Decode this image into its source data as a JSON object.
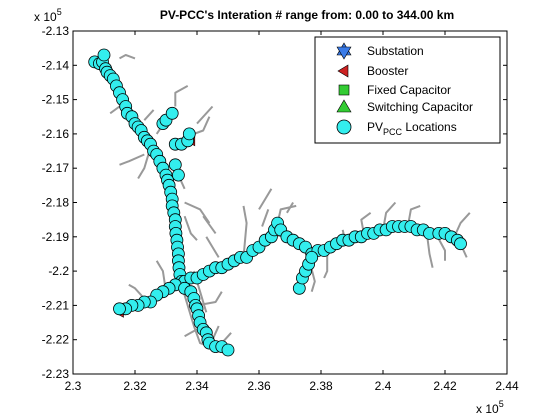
{
  "chart_data": {
    "type": "scatter",
    "title": "PV-PCC's Interation # range from: 0.00 to 344.00 km",
    "xlabel": "",
    "ylabel": "",
    "x_exponent_label": "x 10",
    "x_exponent_power": "5",
    "y_exponent_label": "x 10",
    "y_exponent_power": "5",
    "xlim": [
      2.3,
      2.44
    ],
    "ylim": [
      -2.23,
      -2.13
    ],
    "x_ticks": [
      2.3,
      2.32,
      2.34,
      2.36,
      2.38,
      2.4,
      2.42,
      2.44
    ],
    "x_tick_labels": [
      "2.3",
      "2.32",
      "2.34",
      "2.36",
      "2.38",
      "2.4",
      "2.42",
      "2.44"
    ],
    "y_ticks": [
      -2.13,
      -2.14,
      -2.15,
      -2.16,
      -2.17,
      -2.18,
      -2.19,
      -2.2,
      -2.21,
      -2.22,
      -2.23
    ],
    "y_tick_labels": [
      "-2.13",
      "-2.14",
      "-2.15",
      "-2.16",
      "-2.17",
      "-2.18",
      "-2.19",
      "-2.2",
      "-2.21",
      "-2.22",
      "-2.23"
    ],
    "grid": false,
    "legend_position": "top-right",
    "legend": [
      {
        "label": "Substation",
        "sub": "",
        "suffix": "",
        "marker": "hexagram",
        "color": "#3a7be8"
      },
      {
        "label": "Booster",
        "sub": "",
        "suffix": "",
        "marker": "triangle-left",
        "color": "#cc2222"
      },
      {
        "label": "Fixed Capacitor",
        "sub": "",
        "suffix": "",
        "marker": "square",
        "color": "#33cc33"
      },
      {
        "label": "Switching Capacitor",
        "sub": "",
        "suffix": "",
        "marker": "triangle-up",
        "color": "#33cc33"
      },
      {
        "label": "PV",
        "sub": "PCC",
        "suffix": " Locations",
        "marker": "circle",
        "color": "#33eeee"
      }
    ],
    "network_color": "#999999",
    "marker_edge_color": "#000000",
    "feeder_branches": [
      [
        [
          2.307,
          -2.139
        ],
        [
          2.31,
          -2.142
        ],
        [
          2.314,
          -2.147
        ],
        [
          2.317,
          -2.154
        ],
        [
          2.32,
          -2.157
        ],
        [
          2.323,
          -2.161
        ],
        [
          2.326,
          -2.165
        ],
        [
          2.329,
          -2.17
        ],
        [
          2.331,
          -2.175
        ],
        [
          2.332,
          -2.181
        ],
        [
          2.333,
          -2.186
        ],
        [
          2.3335,
          -2.192
        ],
        [
          2.334,
          -2.198
        ],
        [
          2.335,
          -2.204
        ],
        [
          2.337,
          -2.21
        ],
        [
          2.339,
          -2.216
        ],
        [
          2.341,
          -2.221
        ],
        [
          2.344,
          -2.222
        ],
        [
          2.349,
          -2.223
        ]
      ],
      [
        [
          2.333,
          -2.163
        ],
        [
          2.337,
          -2.162
        ],
        [
          2.338,
          -2.159
        ]
      ],
      [
        [
          2.327,
          -2.16
        ],
        [
          2.33,
          -2.156
        ],
        [
          2.332,
          -2.154
        ]
      ],
      [
        [
          2.332,
          -2.168
        ],
        [
          2.334,
          -2.172
        ],
        [
          2.336,
          -2.176
        ]
      ],
      [
        [
          2.337,
          -2.203
        ],
        [
          2.343,
          -2.201
        ],
        [
          2.348,
          -2.199
        ],
        [
          2.355,
          -2.196
        ],
        [
          2.36,
          -2.193
        ],
        [
          2.364,
          -2.19
        ],
        [
          2.366,
          -2.186
        ]
      ],
      [
        [
          2.363,
          -2.189
        ],
        [
          2.368,
          -2.19
        ],
        [
          2.374,
          -2.192
        ],
        [
          2.379,
          -2.194
        ],
        [
          2.385,
          -2.192
        ],
        [
          2.392,
          -2.19
        ],
        [
          2.398,
          -2.188
        ],
        [
          2.405,
          -2.187
        ],
        [
          2.413,
          -2.188
        ],
        [
          2.417,
          -2.189
        ],
        [
          2.423,
          -2.19
        ],
        [
          2.425,
          -2.192
        ]
      ],
      [
        [
          2.373,
          -2.205
        ],
        [
          2.376,
          -2.198
        ],
        [
          2.378,
          -2.195
        ]
      ],
      [
        [
          2.337,
          -2.203
        ],
        [
          2.33,
          -2.206
        ],
        [
          2.322,
          -2.21
        ],
        [
          2.314,
          -2.212
        ]
      ],
      [
        [
          2.339,
          -2.2
        ],
        [
          2.341,
          -2.206
        ],
        [
          2.343,
          -2.212
        ]
      ]
    ],
    "lateral_lines": [
      [
        [
          2.315,
          -2.138
        ],
        [
          2.317,
          -2.137
        ],
        [
          2.32,
          -2.138
        ]
      ],
      [
        [
          2.318,
          -2.153
        ],
        [
          2.315,
          -2.152
        ],
        [
          2.312,
          -2.154
        ]
      ],
      [
        [
          2.323,
          -2.156
        ],
        [
          2.326,
          -2.153
        ]
      ],
      [
        [
          2.323,
          -2.166
        ],
        [
          2.318,
          -2.168
        ],
        [
          2.315,
          -2.169
        ]
      ],
      [
        [
          2.325,
          -2.164
        ],
        [
          2.323,
          -2.17
        ],
        [
          2.321,
          -2.173
        ]
      ],
      [
        [
          2.336,
          -2.161
        ],
        [
          2.342,
          -2.159
        ],
        [
          2.344,
          -2.155
        ]
      ],
      [
        [
          2.34,
          -2.157
        ],
        [
          2.345,
          -2.152
        ]
      ],
      [
        [
          2.333,
          -2.152
        ],
        [
          2.333,
          -2.148
        ],
        [
          2.337,
          -2.146
        ]
      ],
      [
        [
          2.336,
          -2.18
        ],
        [
          2.341,
          -2.182
        ],
        [
          2.344,
          -2.186
        ]
      ],
      [
        [
          2.336,
          -2.184
        ],
        [
          2.338,
          -2.189
        ],
        [
          2.34,
          -2.191
        ]
      ],
      [
        [
          2.342,
          -2.184
        ],
        [
          2.346,
          -2.189
        ]
      ],
      [
        [
          2.347,
          -2.196
        ],
        [
          2.345,
          -2.193
        ],
        [
          2.343,
          -2.19
        ]
      ],
      [
        [
          2.355,
          -2.196
        ],
        [
          2.356,
          -2.186
        ],
        [
          2.355,
          -2.181
        ]
      ],
      [
        [
          2.36,
          -2.182
        ],
        [
          2.362,
          -2.179
        ],
        [
          2.364,
          -2.176
        ]
      ],
      [
        [
          2.361,
          -2.187
        ],
        [
          2.363,
          -2.182
        ]
      ],
      [
        [
          2.366,
          -2.186
        ],
        [
          2.367,
          -2.182
        ],
        [
          2.372,
          -2.181
        ]
      ],
      [
        [
          2.369,
          -2.183
        ],
        [
          2.371,
          -2.18
        ]
      ],
      [
        [
          2.376,
          -2.196
        ],
        [
          2.378,
          -2.203
        ],
        [
          2.377,
          -2.206
        ]
      ],
      [
        [
          2.382,
          -2.194
        ],
        [
          2.382,
          -2.2
        ],
        [
          2.381,
          -2.202
        ]
      ],
      [
        [
          2.388,
          -2.192
        ],
        [
          2.387,
          -2.188
        ]
      ],
      [
        [
          2.394,
          -2.19
        ],
        [
          2.393,
          -2.185
        ],
        [
          2.396,
          -2.183
        ]
      ],
      [
        [
          2.4,
          -2.188
        ],
        [
          2.401,
          -2.183
        ],
        [
          2.404,
          -2.18
        ]
      ],
      [
        [
          2.408,
          -2.187
        ],
        [
          2.409,
          -2.182
        ],
        [
          2.412,
          -2.181
        ]
      ],
      [
        [
          2.414,
          -2.188
        ],
        [
          2.415,
          -2.195
        ],
        [
          2.416,
          -2.199
        ]
      ],
      [
        [
          2.417,
          -2.189
        ],
        [
          2.42,
          -2.194
        ],
        [
          2.42,
          -2.197
        ]
      ],
      [
        [
          2.423,
          -2.19
        ],
        [
          2.425,
          -2.186
        ],
        [
          2.428,
          -2.183
        ]
      ],
      [
        [
          2.425,
          -2.192
        ],
        [
          2.427,
          -2.196
        ]
      ],
      [
        [
          2.33,
          -2.206
        ],
        [
          2.329,
          -2.2
        ],
        [
          2.327,
          -2.197
        ]
      ],
      [
        [
          2.324,
          -2.209
        ],
        [
          2.32,
          -2.205
        ],
        [
          2.318,
          -2.204
        ]
      ],
      [
        [
          2.34,
          -2.21
        ],
        [
          2.346,
          -2.209
        ],
        [
          2.348,
          -2.206
        ]
      ],
      [
        [
          2.342,
          -2.216
        ],
        [
          2.338,
          -2.218
        ],
        [
          2.336,
          -2.219
        ]
      ],
      [
        [
          2.345,
          -2.22
        ],
        [
          2.347,
          -2.216
        ]
      ],
      [
        [
          2.347,
          -2.222
        ],
        [
          2.351,
          -2.218
        ]
      ]
    ],
    "pv_pcc_points": [
      [
        2.307,
        -2.139
      ],
      [
        2.3085,
        -2.1395
      ],
      [
        2.3095,
        -2.139
      ],
      [
        2.31,
        -2.137
      ],
      [
        2.3105,
        -2.141
      ],
      [
        2.311,
        -2.142
      ],
      [
        2.312,
        -2.143
      ],
      [
        2.313,
        -2.144
      ],
      [
        2.314,
        -2.146
      ],
      [
        2.315,
        -2.148
      ],
      [
        2.316,
        -2.15
      ],
      [
        2.317,
        -2.152
      ],
      [
        2.3175,
        -2.154
      ],
      [
        2.319,
        -2.155
      ],
      [
        2.32,
        -2.157
      ],
      [
        2.321,
        -2.158
      ],
      [
        2.322,
        -2.159
      ],
      [
        2.323,
        -2.161
      ],
      [
        2.324,
        -2.162
      ],
      [
        2.325,
        -2.163
      ],
      [
        2.326,
        -2.165
      ],
      [
        2.327,
        -2.166
      ],
      [
        2.328,
        -2.168
      ],
      [
        2.329,
        -2.17
      ],
      [
        2.33,
        -2.172
      ],
      [
        2.3305,
        -2.1735
      ],
      [
        2.331,
        -2.175
      ],
      [
        2.3315,
        -2.177
      ],
      [
        2.332,
        -2.179
      ],
      [
        2.332,
        -2.181
      ],
      [
        2.3325,
        -2.183
      ],
      [
        2.333,
        -2.185
      ],
      [
        2.333,
        -2.187
      ],
      [
        2.3332,
        -2.189
      ],
      [
        2.3335,
        -2.191
      ],
      [
        2.3337,
        -2.193
      ],
      [
        2.334,
        -2.195
      ],
      [
        2.334,
        -2.197
      ],
      [
        2.3342,
        -2.199
      ],
      [
        2.3345,
        -2.201
      ],
      [
        2.335,
        -2.203
      ],
      [
        2.333,
        -2.163
      ],
      [
        2.335,
        -2.163
      ],
      [
        2.337,
        -2.162
      ],
      [
        2.3375,
        -2.16
      ],
      [
        2.329,
        -2.157
      ],
      [
        2.33,
        -2.156
      ],
      [
        2.332,
        -2.154
      ],
      [
        2.333,
        -2.169
      ],
      [
        2.334,
        -2.172
      ],
      [
        2.336,
        -2.203
      ],
      [
        2.338,
        -2.202
      ],
      [
        2.34,
        -2.202
      ],
      [
        2.342,
        -2.201
      ],
      [
        2.344,
        -2.2
      ],
      [
        2.346,
        -2.199
      ],
      [
        2.348,
        -2.199
      ],
      [
        2.35,
        -2.198
      ],
      [
        2.352,
        -2.197
      ],
      [
        2.354,
        -2.196
      ],
      [
        2.356,
        -2.196
      ],
      [
        2.358,
        -2.194
      ],
      [
        2.36,
        -2.193
      ],
      [
        2.362,
        -2.191
      ],
      [
        2.364,
        -2.19
      ],
      [
        2.365,
        -2.188
      ],
      [
        2.366,
        -2.186
      ],
      [
        2.367,
        -2.188
      ],
      [
        2.369,
        -2.19
      ],
      [
        2.371,
        -2.191
      ],
      [
        2.373,
        -2.192
      ],
      [
        2.375,
        -2.193
      ],
      [
        2.377,
        -2.195
      ],
      [
        2.379,
        -2.194
      ],
      [
        2.381,
        -2.194
      ],
      [
        2.383,
        -2.193
      ],
      [
        2.385,
        -2.192
      ],
      [
        2.387,
        -2.191
      ],
      [
        2.389,
        -2.191
      ],
      [
        2.391,
        -2.19
      ],
      [
        2.393,
        -2.19
      ],
      [
        2.395,
        -2.189
      ],
      [
        2.397,
        -2.189
      ],
      [
        2.399,
        -2.188
      ],
      [
        2.401,
        -2.188
      ],
      [
        2.403,
        -2.187
      ],
      [
        2.405,
        -2.187
      ],
      [
        2.407,
        -2.187
      ],
      [
        2.409,
        -2.187
      ],
      [
        2.411,
        -2.188
      ],
      [
        2.413,
        -2.188
      ],
      [
        2.415,
        -2.189
      ],
      [
        2.418,
        -2.189
      ],
      [
        2.42,
        -2.189
      ],
      [
        2.422,
        -2.19
      ],
      [
        2.424,
        -2.191
      ],
      [
        2.425,
        -2.192
      ],
      [
        2.373,
        -2.205
      ],
      [
        2.374,
        -2.202
      ],
      [
        2.375,
        -2.2
      ],
      [
        2.376,
        -2.198
      ],
      [
        2.377,
        -2.196
      ],
      [
        2.333,
        -2.204
      ],
      [
        2.331,
        -2.205
      ],
      [
        2.329,
        -2.206
      ],
      [
        2.327,
        -2.207
      ],
      [
        2.325,
        -2.209
      ],
      [
        2.323,
        -2.209
      ],
      [
        2.321,
        -2.21
      ],
      [
        2.319,
        -2.21
      ],
      [
        2.317,
        -2.211
      ],
      [
        2.315,
        -2.211
      ],
      [
        2.336,
        -2.205
      ],
      [
        2.338,
        -2.206
      ],
      [
        2.339,
        -2.208
      ],
      [
        2.3395,
        -2.21
      ],
      [
        2.34,
        -2.211
      ],
      [
        2.3405,
        -2.213
      ],
      [
        2.341,
        -2.215
      ],
      [
        2.342,
        -2.217
      ],
      [
        2.343,
        -2.218
      ],
      [
        2.3435,
        -2.22
      ],
      [
        2.344,
        -2.221
      ],
      [
        2.346,
        -2.222
      ],
      [
        2.348,
        -2.222
      ],
      [
        2.35,
        -2.223
      ]
    ],
    "booster_points": [
      [
        2.338,
        -2.162
      ],
      [
        2.315,
        -2.212
      ]
    ]
  }
}
